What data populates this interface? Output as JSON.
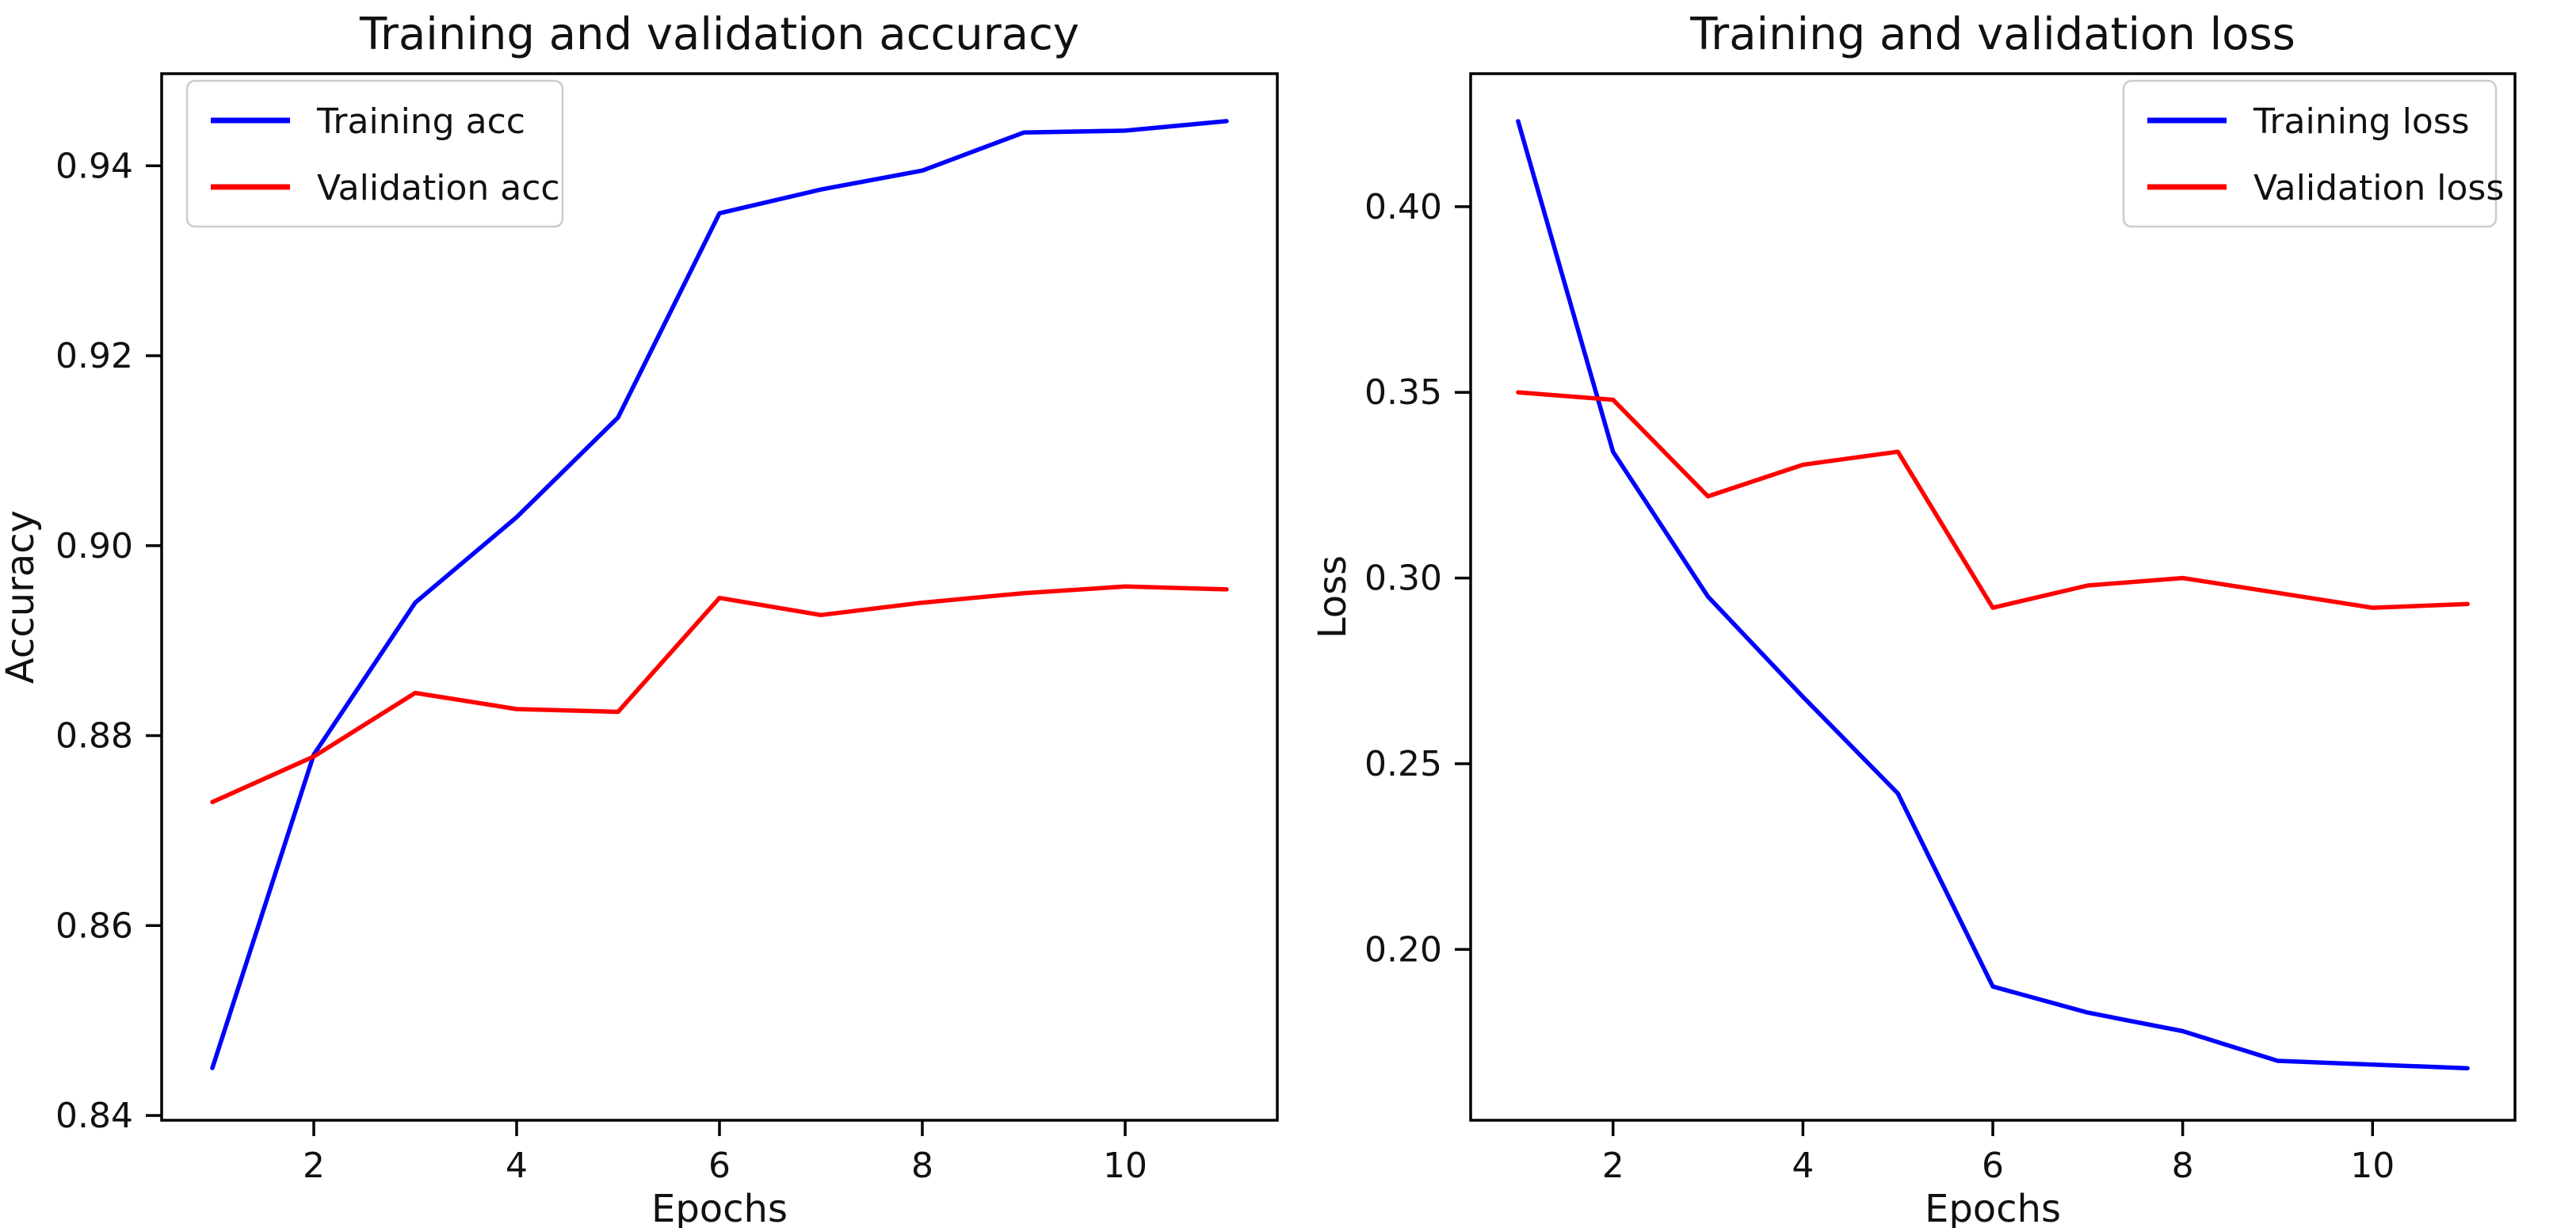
{
  "figure": {
    "background_color": "#ffffff",
    "accent_blue": "#0000ff",
    "accent_red": "#ff0000"
  },
  "chart_data": [
    {
      "type": "line",
      "title": "Training and validation accuracy",
      "xlabel": "Epochs",
      "ylabel": "Accuracy",
      "x": [
        1,
        2,
        3,
        4,
        5,
        6,
        7,
        8,
        9,
        10,
        11
      ],
      "series": [
        {
          "name": "Training acc",
          "color": "#0000ff",
          "values": [
            0.845,
            0.878,
            0.894,
            0.903,
            0.9135,
            0.935,
            0.9375,
            0.9395,
            0.9435,
            0.9437,
            0.9447
          ]
        },
        {
          "name": "Validation acc",
          "color": "#ff0000",
          "values": [
            0.873,
            0.8778,
            0.8845,
            0.8828,
            0.8825,
            0.8945,
            0.8927,
            0.894,
            0.895,
            0.8957,
            0.8954
          ]
        }
      ],
      "xlim": [
        0.5,
        11.5
      ],
      "ylim": [
        0.8395,
        0.9497
      ],
      "xticks": [
        2,
        4,
        6,
        8,
        10
      ],
      "yticks": [
        0.84,
        0.86,
        0.88,
        0.9,
        0.92,
        0.94
      ],
      "ytick_labels": [
        "0.84",
        "0.86",
        "0.88",
        "0.90",
        "0.92",
        "0.94"
      ],
      "grid": false,
      "legend_position": "top-left"
    },
    {
      "type": "line",
      "title": "Training and validation loss",
      "xlabel": "Epochs",
      "ylabel": "Loss",
      "x": [
        1,
        2,
        3,
        4,
        5,
        6,
        7,
        8,
        9,
        10,
        11
      ],
      "series": [
        {
          "name": "Training loss",
          "color": "#0000ff",
          "values": [
            0.423,
            0.334,
            0.295,
            0.268,
            0.242,
            0.19,
            0.183,
            0.178,
            0.17,
            0.169,
            0.168
          ]
        },
        {
          "name": "Validation loss",
          "color": "#ff0000",
          "values": [
            0.35,
            0.348,
            0.322,
            0.3305,
            0.334,
            0.292,
            0.298,
            0.3,
            0.296,
            0.292,
            0.293
          ]
        }
      ],
      "xlim": [
        0.5,
        11.5
      ],
      "ylim": [
        0.154,
        0.4358
      ],
      "xticks": [
        2,
        4,
        6,
        8,
        10
      ],
      "yticks": [
        0.2,
        0.25,
        0.3,
        0.35,
        0.4
      ],
      "ytick_labels": [
        "0.20",
        "0.25",
        "0.30",
        "0.35",
        "0.40"
      ],
      "grid": false,
      "legend_position": "top-right"
    }
  ]
}
